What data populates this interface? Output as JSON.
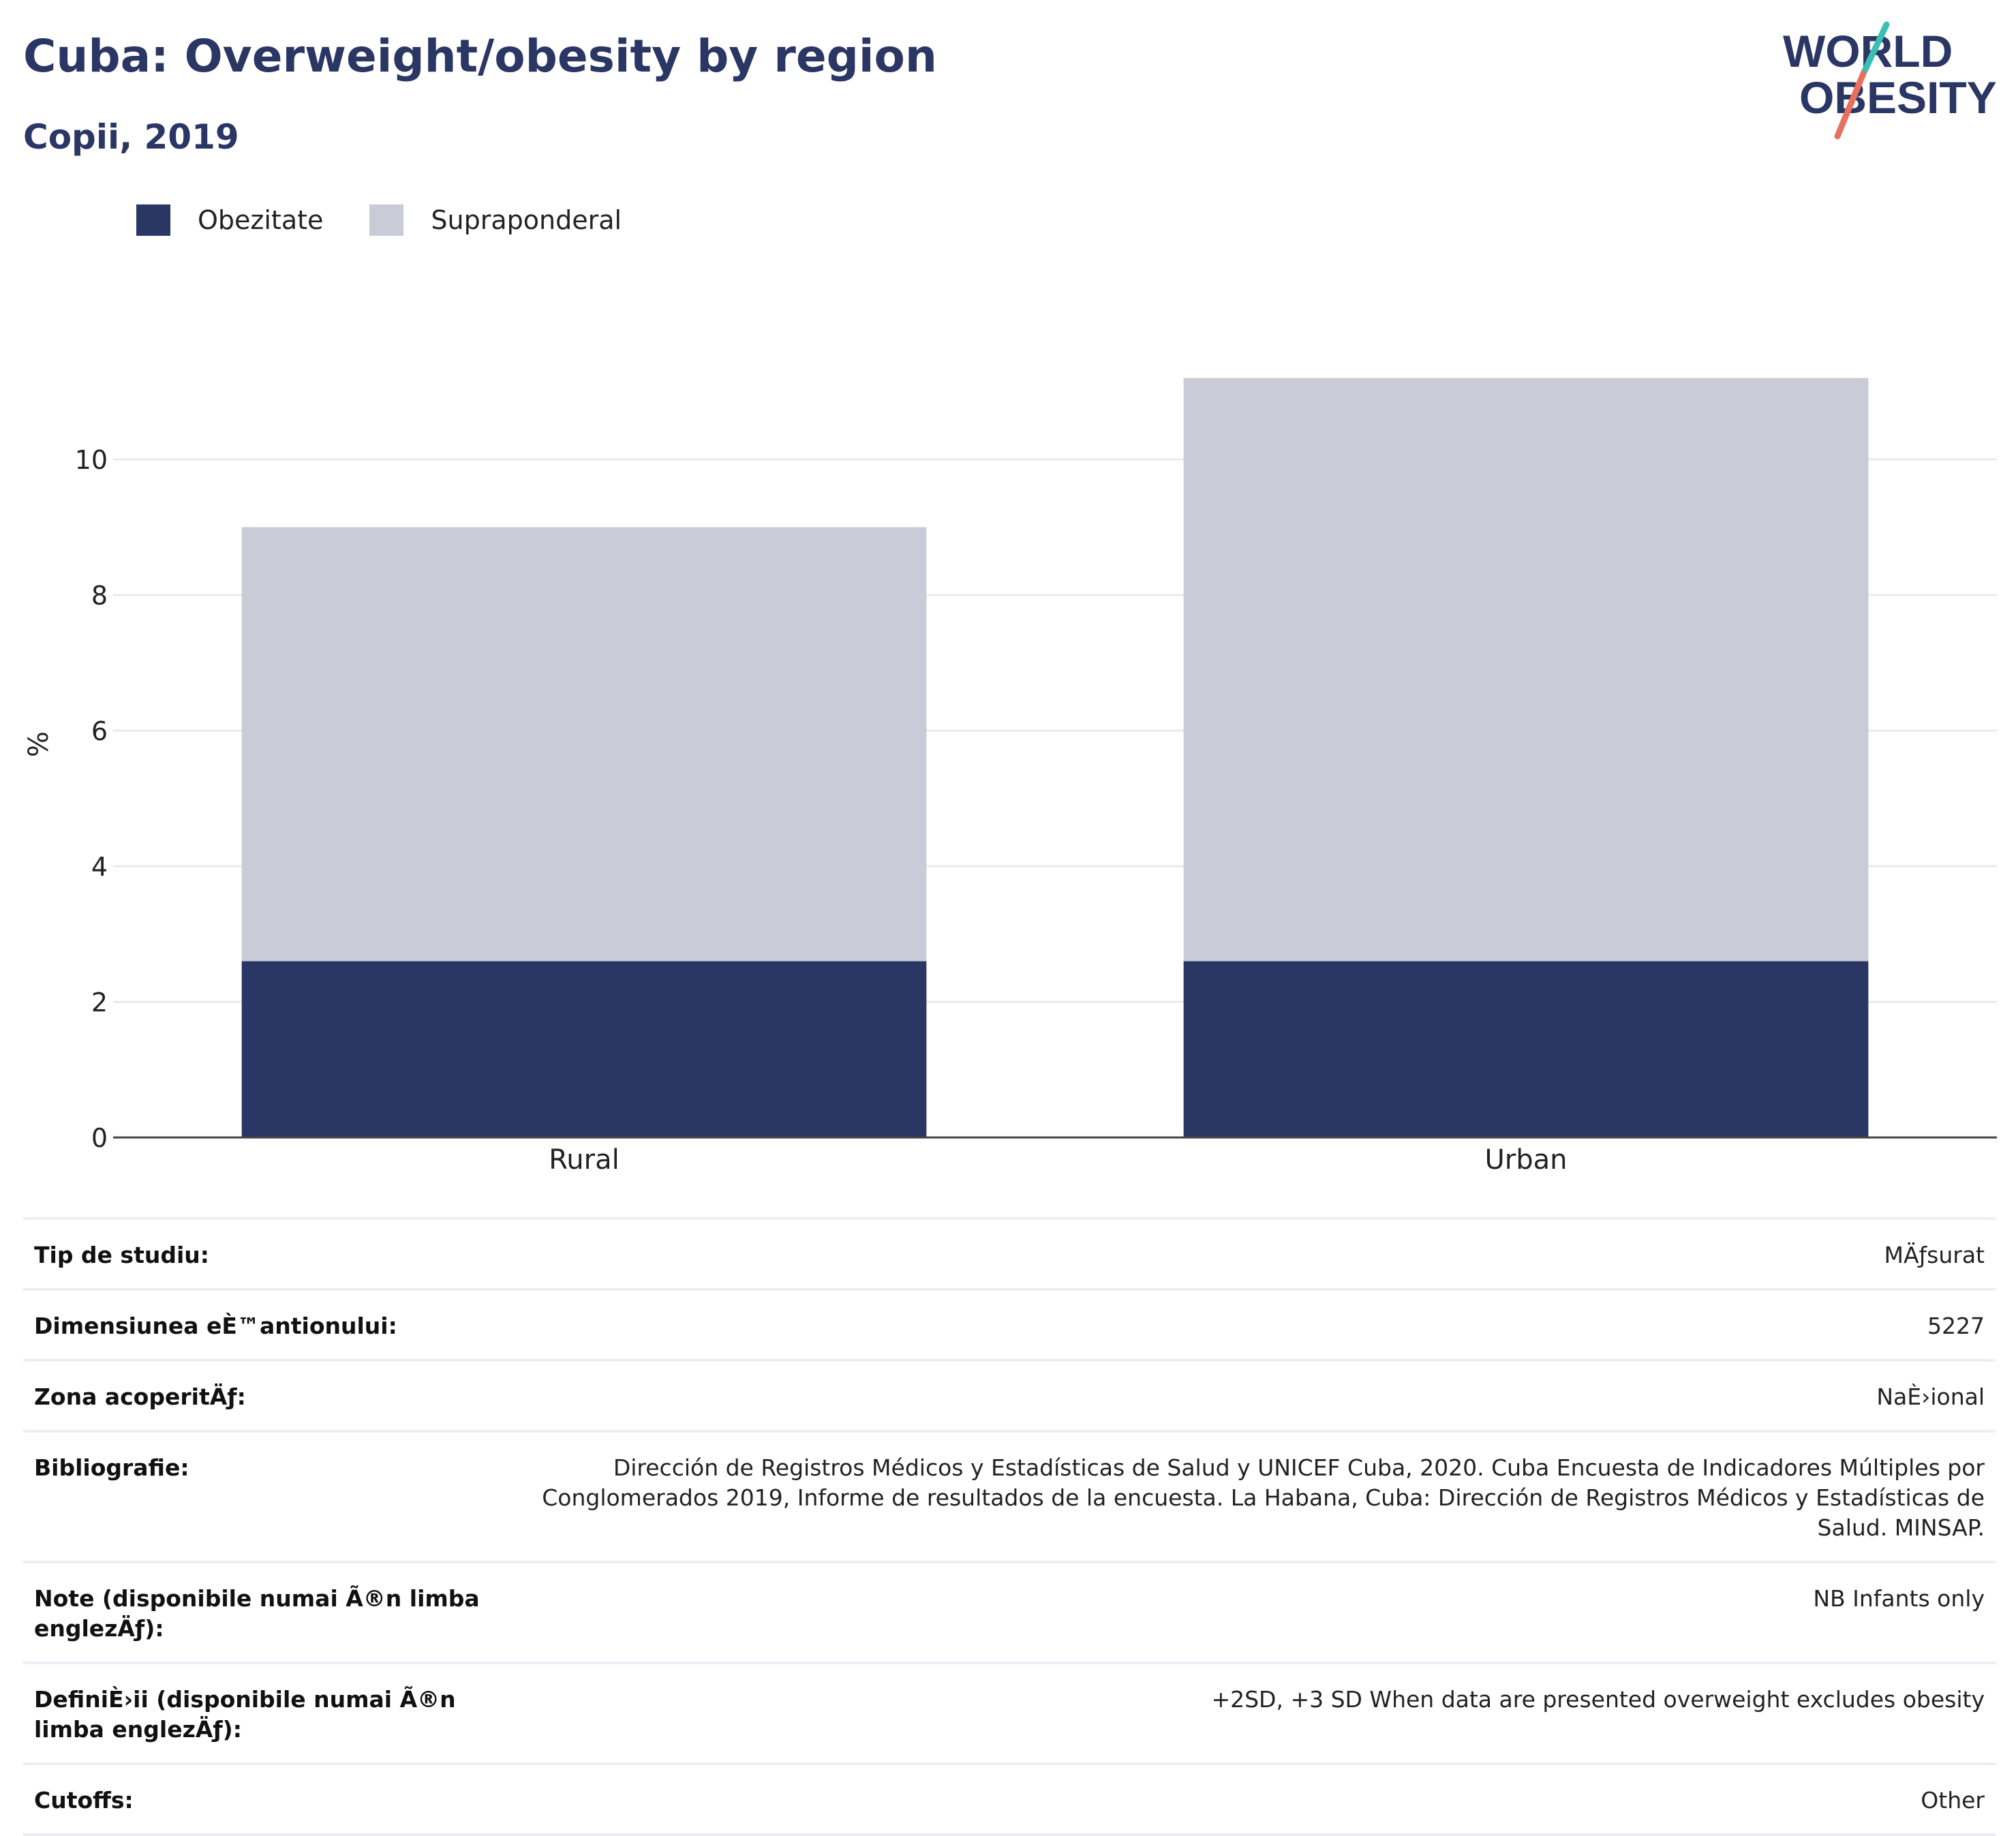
{
  "header": {
    "title": "Cuba: Overweight/obesity by region",
    "subtitle": "Copii, 2019",
    "logo_line1": "WORLD",
    "logo_line2": "OBESITY"
  },
  "legend": [
    {
      "label": "Obezitate",
      "color": "#2a3664"
    },
    {
      "label": "Supraponderal",
      "color": "#c9ccd7"
    }
  ],
  "chart_data": {
    "type": "bar",
    "stacked": true,
    "categories": [
      "Rural",
      "Urban"
    ],
    "series": [
      {
        "name": "Obezitate",
        "values": [
          2.6,
          2.6
        ],
        "color": "#2a3664"
      },
      {
        "name": "Supraponderal",
        "values": [
          6.4,
          8.6
        ],
        "color": "#c9ccd7"
      }
    ],
    "ylabel": "%",
    "yticks": [
      0,
      2,
      4,
      6,
      8,
      10
    ],
    "ylim": [
      0,
      12
    ],
    "grid": true,
    "legend_position": "top-left"
  },
  "info_table": [
    {
      "label": "Tip de studiu:",
      "value": "MÄƒsurat"
    },
    {
      "label": "Dimensiunea eÈ™antionului:",
      "value": "5227"
    },
    {
      "label": "Zona acoperitÄƒ:",
      "value": "NaÈ›ional"
    },
    {
      "label": "Bibliografie:",
      "value": "Dirección de Registros Médicos y Estadísticas de Salud y UNICEF Cuba, 2020. Cuba Encuesta de Indicadores Múltiples por Conglomerados 2019, Informe de resultados de la encuesta. La Habana, Cuba: Dirección de Registros Médicos y Estadísticas de Salud. MINSAP."
    },
    {
      "label": "Note (disponibile numai Ã®n limba englezÄƒ):",
      "value": "NB Infants only"
    },
    {
      "label": "DefiniÈ›ii (disponibile numai Ã®n limba englezÄƒ):",
      "value": "+2SD, +3 SD When data are presented overweight excludes obesity"
    },
    {
      "label": "Cutoffs:",
      "value": "Other"
    }
  ]
}
